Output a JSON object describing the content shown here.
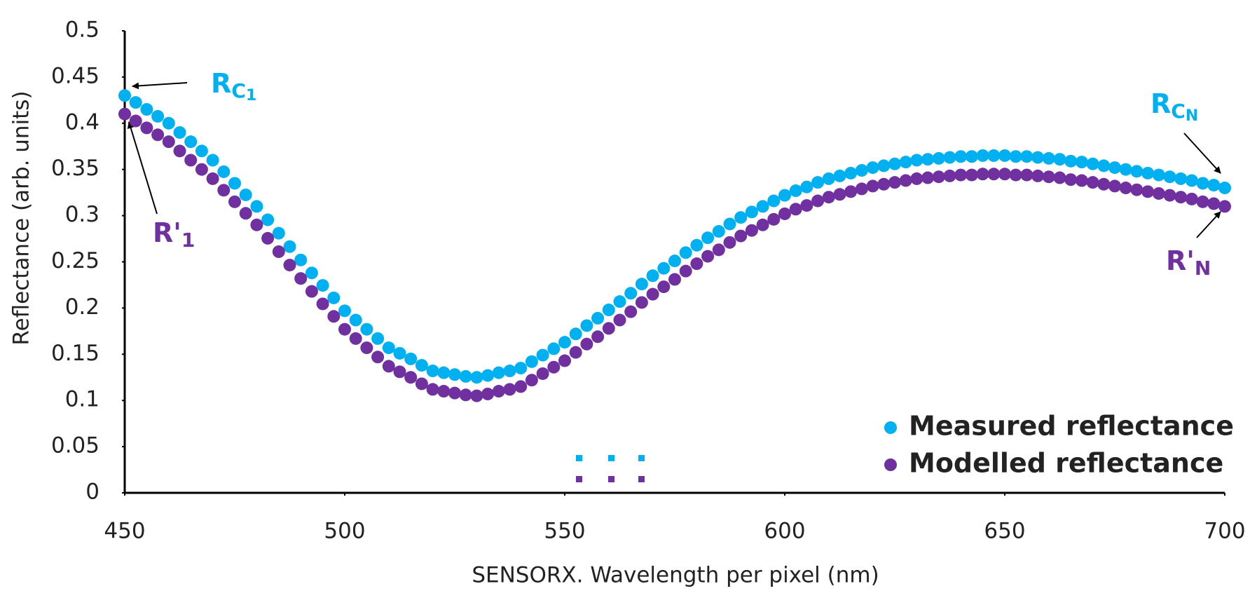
{
  "chart_data": {
    "type": "scatter",
    "x_label": "SENSORX. Wavelength per pixel (nm)",
    "y_label": "Reflectance (arb. units)",
    "x": [
      450,
      452.5,
      455,
      457.5,
      460,
      462.5,
      465,
      467.5,
      470,
      472.5,
      475,
      477.5,
      480,
      482.5,
      485,
      487.5,
      490,
      492.5,
      495,
      497.5,
      500,
      502.5,
      505,
      507.5,
      510,
      512.5,
      515,
      517.5,
      520,
      522.5,
      525,
      527.5,
      530,
      532.5,
      535,
      537.5,
      540,
      542.5,
      545,
      547.5,
      550,
      552.5,
      555,
      557.5,
      560,
      562.5,
      565,
      567.5,
      570,
      572.5,
      575,
      577.5,
      580,
      582.5,
      585,
      587.5,
      590,
      592.5,
      595,
      597.5,
      600,
      602.5,
      605,
      607.5,
      610,
      612.5,
      615,
      617.5,
      620,
      622.5,
      625,
      627.5,
      630,
      632.5,
      635,
      637.5,
      640,
      642.5,
      645,
      647.5,
      650,
      652.5,
      655,
      657.5,
      660,
      662.5,
      665,
      667.5,
      670,
      672.5,
      675,
      677.5,
      680,
      682.5,
      685,
      687.5,
      690,
      692.5,
      695,
      697.5,
      700
    ],
    "series": [
      {
        "name": "Measured reflectance",
        "color": "#00b0f0",
        "values": [
          0.43,
          0.4225,
          0.415,
          0.4075,
          0.4,
          0.39,
          0.38,
          0.37,
          0.36,
          0.3475,
          0.335,
          0.3225,
          0.31,
          0.2955,
          0.281,
          0.2665,
          0.252,
          0.238,
          0.2245,
          0.211,
          0.197,
          0.187,
          0.177,
          0.167,
          0.157,
          0.151,
          0.145,
          0.138,
          0.132,
          0.13,
          0.128,
          0.126,
          0.125,
          0.127,
          0.13,
          0.132,
          0.135,
          0.142,
          0.149,
          0.156,
          0.163,
          0.172,
          0.181,
          0.189,
          0.198,
          0.207,
          0.216,
          0.226,
          0.235,
          0.243,
          0.251,
          0.26,
          0.268,
          0.276,
          0.283,
          0.291,
          0.298,
          0.304,
          0.31,
          0.316,
          0.322,
          0.327,
          0.331,
          0.336,
          0.34,
          0.343,
          0.346,
          0.349,
          0.352,
          0.354,
          0.356,
          0.358,
          0.36,
          0.361,
          0.362,
          0.363,
          0.364,
          0.364,
          0.365,
          0.365,
          0.365,
          0.364,
          0.364,
          0.363,
          0.362,
          0.361,
          0.359,
          0.358,
          0.356,
          0.354,
          0.352,
          0.35,
          0.348,
          0.346,
          0.344,
          0.342,
          0.34,
          0.338,
          0.335,
          0.333,
          0.33
        ]
      },
      {
        "name": "Modelled reflectance",
        "color": "#7030a0",
        "values": [
          0.41,
          0.4025,
          0.395,
          0.3875,
          0.38,
          0.37,
          0.36,
          0.35,
          0.34,
          0.3275,
          0.315,
          0.3025,
          0.29,
          0.2755,
          0.261,
          0.2465,
          0.232,
          0.218,
          0.2045,
          0.191,
          0.177,
          0.167,
          0.157,
          0.147,
          0.137,
          0.131,
          0.125,
          0.118,
          0.112,
          0.11,
          0.108,
          0.106,
          0.105,
          0.107,
          0.11,
          0.112,
          0.115,
          0.122,
          0.129,
          0.136,
          0.143,
          0.152,
          0.161,
          0.169,
          0.178,
          0.187,
          0.196,
          0.206,
          0.215,
          0.223,
          0.231,
          0.24,
          0.248,
          0.256,
          0.263,
          0.271,
          0.278,
          0.284,
          0.29,
          0.296,
          0.302,
          0.307,
          0.311,
          0.316,
          0.32,
          0.323,
          0.326,
          0.329,
          0.332,
          0.334,
          0.336,
          0.338,
          0.34,
          0.341,
          0.342,
          0.343,
          0.344,
          0.344,
          0.345,
          0.345,
          0.345,
          0.344,
          0.344,
          0.343,
          0.342,
          0.341,
          0.339,
          0.338,
          0.336,
          0.334,
          0.332,
          0.33,
          0.328,
          0.326,
          0.324,
          0.322,
          0.32,
          0.318,
          0.315,
          0.313,
          0.31
        ]
      }
    ],
    "xlim": [
      450,
      700
    ],
    "xticks": [
      450,
      500,
      550,
      600,
      650,
      700
    ],
    "ylim": [
      0,
      0.5
    ],
    "yticks": [
      0,
      0.05,
      0.1,
      0.15,
      0.2,
      0.25,
      0.3,
      0.35,
      0.4,
      0.45,
      0.5
    ],
    "grid": false,
    "legend": "bottom-right",
    "annotations": [
      {
        "text": "R",
        "sub": "C",
        "sub2": "1",
        "color": "#00b0f0"
      },
      {
        "text": "R'",
        "sub": "1",
        "color": "#7030a0"
      },
      {
        "text": "R",
        "sub": "C",
        "sub2": "N",
        "color": "#00b0f0"
      },
      {
        "text": "R'",
        "sub": "N",
        "color": "#7030a0"
      }
    ]
  }
}
